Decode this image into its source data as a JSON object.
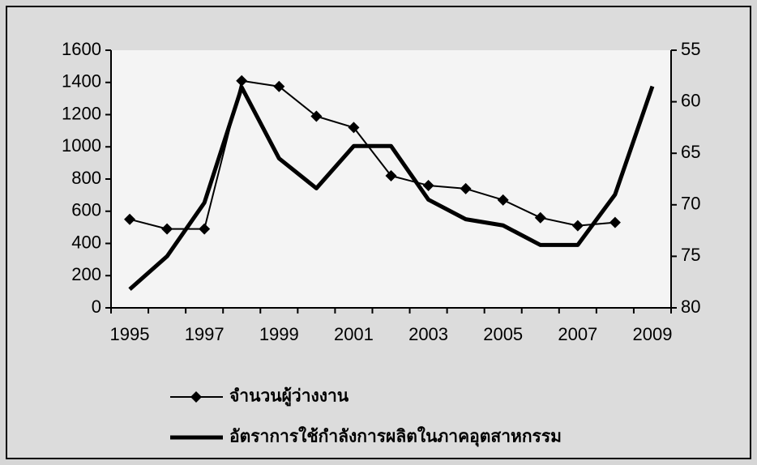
{
  "chart_data": {
    "type": "line",
    "categories": [
      "1995",
      null,
      "1997",
      null,
      "1999",
      null,
      "2001",
      null,
      "2003",
      null,
      "2005",
      null,
      "2007",
      null,
      "2009"
    ],
    "series": [
      {
        "name": "จำนวนผู้ว่างงาน",
        "color": "#000000",
        "marker": "diamond",
        "values": [
          550,
          490,
          490,
          1410,
          1375,
          1190,
          1120,
          820,
          760,
          740,
          670,
          560,
          510,
          530,
          null
        ]
      },
      {
        "name": "อัตราการใช้กำลังการผลิตในภาคอุตสาหกรรม",
        "color": "#000000",
        "axis": "y2",
        "values": [
          78.2,
          75.0,
          69.8,
          58.6,
          65.5,
          68.4,
          64.3,
          64.3,
          69.5,
          71.4,
          72.0,
          73.9,
          73.9,
          69.0,
          58.5
        ]
      }
    ],
    "ylim": [
      0,
      1600
    ],
    "yticks": [
      0,
      200,
      400,
      600,
      800,
      1000,
      1200,
      1400,
      1600
    ],
    "y2lim": [
      55,
      80
    ],
    "y2ticks": [
      55,
      60,
      65,
      70,
      75,
      80
    ],
    "y2_reversed": true,
    "grid": false,
    "legend": "bottom"
  }
}
